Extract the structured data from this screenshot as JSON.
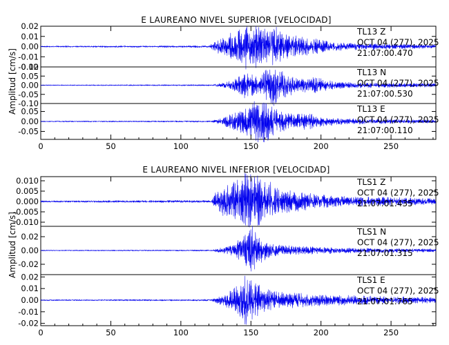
{
  "chart_data": [
    {
      "type": "line",
      "title": "E LAUREANO NIVEL SUPERIOR [VELOCIDAD]",
      "ylabel": "Amplitud [cm/s]",
      "xlim": [
        0,
        282
      ],
      "x_ticks": [
        "0",
        "50",
        "100",
        "150",
        "200",
        "250"
      ],
      "line_color": "#0000ee",
      "series": [
        {
          "name": "TL13   Z",
          "date": "OCT 04 (277), 2025",
          "time": "21:07:00.470",
          "ylim": [
            -0.02,
            0.02
          ],
          "y_ticks": [
            "0.02",
            "0.01",
            "0.00",
            "-0.01",
            "-0.02"
          ],
          "onset_s": 125,
          "peak_s": 148,
          "peak_amplitude": 0.02,
          "envelope": [
            [
              0,
              0.0005
            ],
            [
              120,
              0.0008
            ],
            [
              126,
              0.005
            ],
            [
              135,
              0.01
            ],
            [
              142,
              0.014
            ],
            [
              148,
              0.02
            ],
            [
              155,
              0.016
            ],
            [
              162,
              0.013
            ],
            [
              168,
              0.015
            ],
            [
              175,
              0.01
            ],
            [
              185,
              0.008
            ],
            [
              195,
              0.007
            ],
            [
              205,
              0.004
            ],
            [
              220,
              0.0028
            ],
            [
              245,
              0.0022
            ],
            [
              282,
              0.0015
            ]
          ]
        },
        {
          "name": "TL13   N",
          "date": "OCT 04 (277), 2025",
          "time": "21:07:00.530",
          "ylim": [
            -0.1,
            0.1
          ],
          "y_ticks": [
            "0.10",
            "0.05",
            "0.00",
            "-0.05",
            "-0.10"
          ],
          "onset_s": 125,
          "peak_s": 165,
          "peak_amplitude": 0.095,
          "envelope": [
            [
              0,
              0.002
            ],
            [
              122,
              0.003
            ],
            [
              130,
              0.01
            ],
            [
              138,
              0.025
            ],
            [
              145,
              0.055
            ],
            [
              150,
              0.05
            ],
            [
              156,
              0.035
            ],
            [
              162,
              0.08
            ],
            [
              166,
              0.095
            ],
            [
              172,
              0.07
            ],
            [
              180,
              0.04
            ],
            [
              188,
              0.03
            ],
            [
              195,
              0.04
            ],
            [
              205,
              0.02
            ],
            [
              220,
              0.012
            ],
            [
              282,
              0.008
            ]
          ]
        },
        {
          "name": "TL13   E",
          "date": "OCT 04 (277), 2025",
          "time": "21:07:00.110",
          "ylim": [
            -0.09,
            0.09
          ],
          "y_ticks": [
            "0.05",
            "0.00",
            "-0.05"
          ],
          "onset_s": 125,
          "peak_s": 158,
          "peak_amplitude": 0.09,
          "envelope": [
            [
              0,
              0.002
            ],
            [
              122,
              0.003
            ],
            [
              130,
              0.015
            ],
            [
              140,
              0.04
            ],
            [
              148,
              0.07
            ],
            [
              155,
              0.085
            ],
            [
              160,
              0.09
            ],
            [
              166,
              0.06
            ],
            [
              172,
              0.04
            ],
            [
              180,
              0.03
            ],
            [
              190,
              0.035
            ],
            [
              200,
              0.02
            ],
            [
              215,
              0.012
            ],
            [
              282,
              0.006
            ]
          ]
        }
      ]
    },
    {
      "type": "line",
      "title": "E LAUREANO NIVEL INFERIOR [VELOCIDAD]",
      "ylabel": "Amplitud [cm/s]",
      "xlim": [
        0,
        282
      ],
      "x_ticks": [
        "0",
        "50",
        "100",
        "150",
        "200",
        "250"
      ],
      "line_color": "#0000ee",
      "series": [
        {
          "name": "TLS1   Z",
          "date": "OCT 04 (277), 2025",
          "time": "21:07:01.435",
          "ylim": [
            -0.012,
            0.012
          ],
          "y_ticks": [
            "0.010",
            "0.005",
            "0.000",
            "-0.005",
            "-0.010"
          ],
          "onset_s": 125,
          "peak_s": 150,
          "peak_amplitude": 0.012,
          "envelope": [
            [
              0,
              0.0003
            ],
            [
              122,
              0.0005
            ],
            [
              125,
              0.004
            ],
            [
              132,
              0.006
            ],
            [
              140,
              0.008
            ],
            [
              145,
              0.011
            ],
            [
              150,
              0.012
            ],
            [
              156,
              0.011
            ],
            [
              162,
              0.008
            ],
            [
              170,
              0.005
            ],
            [
              180,
              0.004
            ],
            [
              195,
              0.003
            ],
            [
              215,
              0.0022
            ],
            [
              245,
              0.0017
            ],
            [
              282,
              0.0012
            ]
          ]
        },
        {
          "name": "TLS1   N",
          "date": "OCT 04 (277), 2025",
          "time": "21:07:01.315",
          "ylim": [
            -0.035,
            0.035
          ],
          "y_ticks": [
            "0.02",
            "0.00",
            "-0.02"
          ],
          "onset_s": 125,
          "peak_s": 150,
          "peak_amplitude": 0.03,
          "envelope": [
            [
              0,
              0.0005
            ],
            [
              122,
              0.0008
            ],
            [
              128,
              0.003
            ],
            [
              138,
              0.007
            ],
            [
              145,
              0.018
            ],
            [
              150,
              0.03
            ],
            [
              155,
              0.018
            ],
            [
              162,
              0.01
            ],
            [
              172,
              0.006
            ],
            [
              185,
              0.005
            ],
            [
              200,
              0.004
            ],
            [
              225,
              0.003
            ],
            [
              282,
              0.002
            ]
          ]
        },
        {
          "name": "TLS1   E",
          "date": "OCT 04 (277), 2025",
          "time": "21:07:01.765",
          "ylim": [
            -0.022,
            0.022
          ],
          "y_ticks": [
            "0.02",
            "0.01",
            "0.00",
            "-0.01",
            "-0.02"
          ],
          "onset_s": 125,
          "peak_s": 146,
          "peak_amplitude": 0.02,
          "envelope": [
            [
              0,
              0.0004
            ],
            [
              122,
              0.0006
            ],
            [
              128,
              0.003
            ],
            [
              136,
              0.007
            ],
            [
              142,
              0.012
            ],
            [
              146,
              0.02
            ],
            [
              152,
              0.013
            ],
            [
              160,
              0.009
            ],
            [
              170,
              0.006
            ],
            [
              182,
              0.005
            ],
            [
              200,
              0.004
            ],
            [
              230,
              0.003
            ],
            [
              282,
              0.002
            ]
          ]
        }
      ]
    }
  ]
}
